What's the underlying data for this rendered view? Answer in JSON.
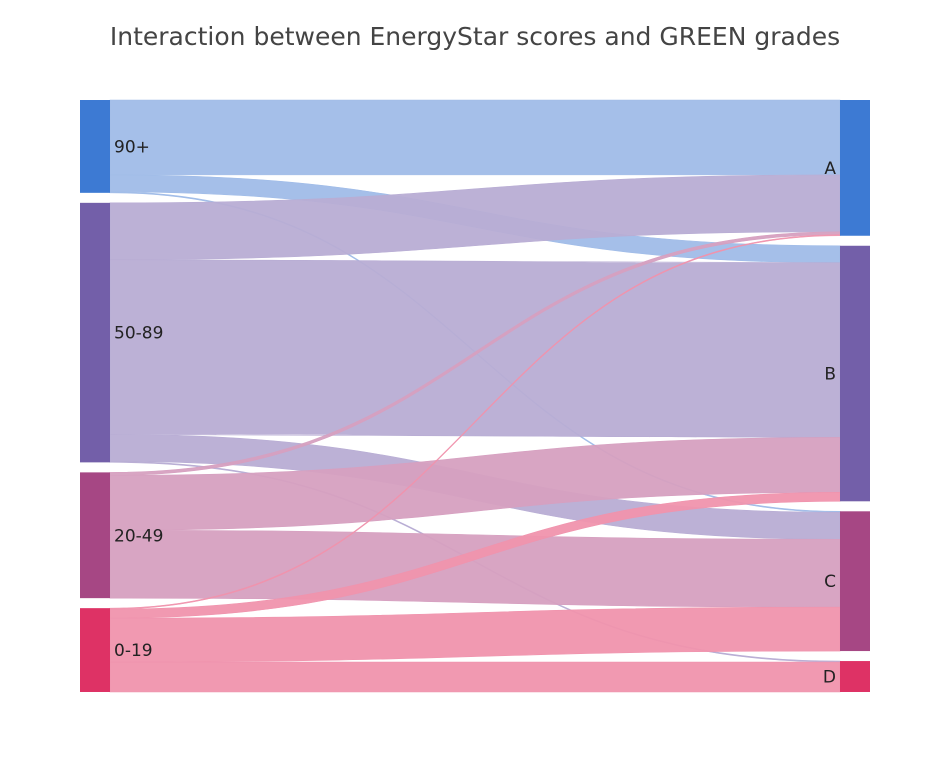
{
  "chart_data": {
    "type": "sankey",
    "title": "Interaction between EnergyStar scores and GREEN grades",
    "sources": [
      {
        "label": "90+",
        "color": "#3d7ad3"
      },
      {
        "label": "50-89",
        "color": "#735fa9"
      },
      {
        "label": "20-49",
        "color": "#a64784"
      },
      {
        "label": "0-19",
        "color": "#de3265"
      }
    ],
    "targets": [
      {
        "label": "A",
        "color": "#3d7ad3"
      },
      {
        "label": "B",
        "color": "#735fa9"
      },
      {
        "label": "C",
        "color": "#a64784"
      },
      {
        "label": "D",
        "color": "#de3265"
      }
    ],
    "link_colors": {
      "90+": "#a0bce8",
      "50-89": "#b8add4",
      "20-49": "#d6a0c0",
      "0-19": "#f093ad"
    },
    "links": [
      {
        "source": "90+",
        "target": "A",
        "value": 75
      },
      {
        "source": "90+",
        "target": "B",
        "value": 17
      },
      {
        "source": "90+",
        "target": "C",
        "value": 1
      },
      {
        "source": "50-89",
        "target": "A",
        "value": 57
      },
      {
        "source": "50-89",
        "target": "B",
        "value": 175
      },
      {
        "source": "50-89",
        "target": "C",
        "value": 27
      },
      {
        "source": "50-89",
        "target": "D",
        "value": 1
      },
      {
        "source": "20-49",
        "target": "A",
        "value": 3
      },
      {
        "source": "20-49",
        "target": "B",
        "value": 55
      },
      {
        "source": "20-49",
        "target": "C",
        "value": 68
      },
      {
        "source": "0-19",
        "target": "A",
        "value": 1
      },
      {
        "source": "0-19",
        "target": "B",
        "value": 9
      },
      {
        "source": "0-19",
        "target": "C",
        "value": 44
      },
      {
        "source": "0-19",
        "target": "D",
        "value": 30
      }
    ]
  }
}
